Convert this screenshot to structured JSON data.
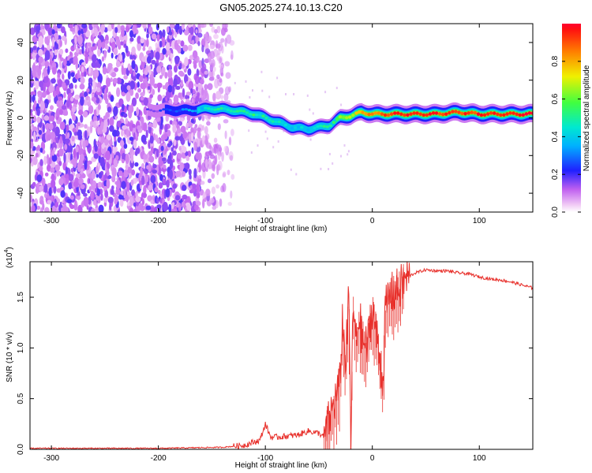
{
  "figure": {
    "title": "GN05.2025.274.10.13.C20"
  },
  "colors": {
    "snr_line": "#e8312c",
    "background_blob": "#8a2be2",
    "frame": "#000000"
  },
  "chart_data": [
    {
      "type": "heatmap",
      "title": "GN05.2025.274.10.13.C20",
      "xlabel": "Height of straight line (km)",
      "ylabel": "Frequency (Hz)",
      "xlim": [
        -320,
        150
      ],
      "ylim": [
        -50,
        50
      ],
      "xticks": [
        -300,
        -200,
        -100,
        0,
        100
      ],
      "yticks": [
        -40,
        -20,
        0,
        20,
        40
      ],
      "colorbar": {
        "label": "Normalized spectral amplitude",
        "range": [
          0,
          1
        ],
        "ticks": [
          "0.0",
          "0.2",
          "0.4",
          "0.6",
          "0.8"
        ],
        "colormap": "rainbow (magenta-blue-cyan-green-yellow-red)"
      },
      "ridge": {
        "x": [
          -210,
          -190,
          -170,
          -150,
          -130,
          -110,
          -90,
          -75,
          -60,
          -50,
          -40,
          -30,
          -20,
          -10,
          0,
          20,
          40,
          60,
          80,
          100,
          120,
          150
        ],
        "freq_hz": [
          4,
          4,
          4,
          5,
          4,
          2,
          -2,
          -5,
          -6,
          -5,
          -4,
          0,
          1,
          3,
          2,
          2,
          2,
          2,
          3,
          2,
          2,
          2
        ],
        "amplitude": [
          0.15,
          0.25,
          0.35,
          0.45,
          0.5,
          0.5,
          0.45,
          0.4,
          0.4,
          0.45,
          0.5,
          0.6,
          0.7,
          0.8,
          0.85,
          0.95,
          0.95,
          0.95,
          0.9,
          0.95,
          0.95,
          0.95
        ]
      },
      "noise_region_x": [
        -320,
        -140
      ]
    },
    {
      "type": "line",
      "xlabel": "Height of straight line (km)",
      "ylabel": "SNR (10 * v/v)",
      "yscale_label": "(x10",
      "yscale_exponent": "4",
      "xlim": [
        -320,
        150
      ],
      "ylim": [
        0,
        1.85
      ],
      "xticks": [
        -300,
        -200,
        -100,
        0,
        100
      ],
      "yticks": [
        "0.0",
        "0.5",
        "1.0",
        "1.5"
      ],
      "series": [
        {
          "name": "SNR",
          "x": [
            -320,
            -200,
            -140,
            -120,
            -105,
            -100,
            -95,
            -90,
            -80,
            -70,
            -60,
            -50,
            -45,
            -40,
            -35,
            -30,
            -28,
            -25,
            -22,
            -20,
            -18,
            -15,
            -12,
            -10,
            -5,
            0,
            5,
            10,
            12,
            15,
            20,
            25,
            30,
            35,
            40,
            50,
            60,
            70,
            80,
            90,
            100,
            110,
            120,
            130,
            140,
            150
          ],
          "y": [
            0.01,
            0.01,
            0.02,
            0.04,
            0.09,
            0.25,
            0.12,
            0.12,
            0.13,
            0.14,
            0.18,
            0.16,
            0.12,
            0.3,
            0.48,
            0.66,
            1.28,
            0.85,
            1.5,
            0.12,
            1.4,
            1.05,
            1.35,
            1.1,
            1.0,
            1.4,
            1.05,
            0.65,
            1.35,
            1.5,
            1.55,
            1.58,
            1.66,
            1.71,
            1.74,
            1.77,
            1.76,
            1.76,
            1.74,
            1.73,
            1.7,
            1.68,
            1.67,
            1.65,
            1.62,
            1.59
          ]
        }
      ]
    }
  ]
}
